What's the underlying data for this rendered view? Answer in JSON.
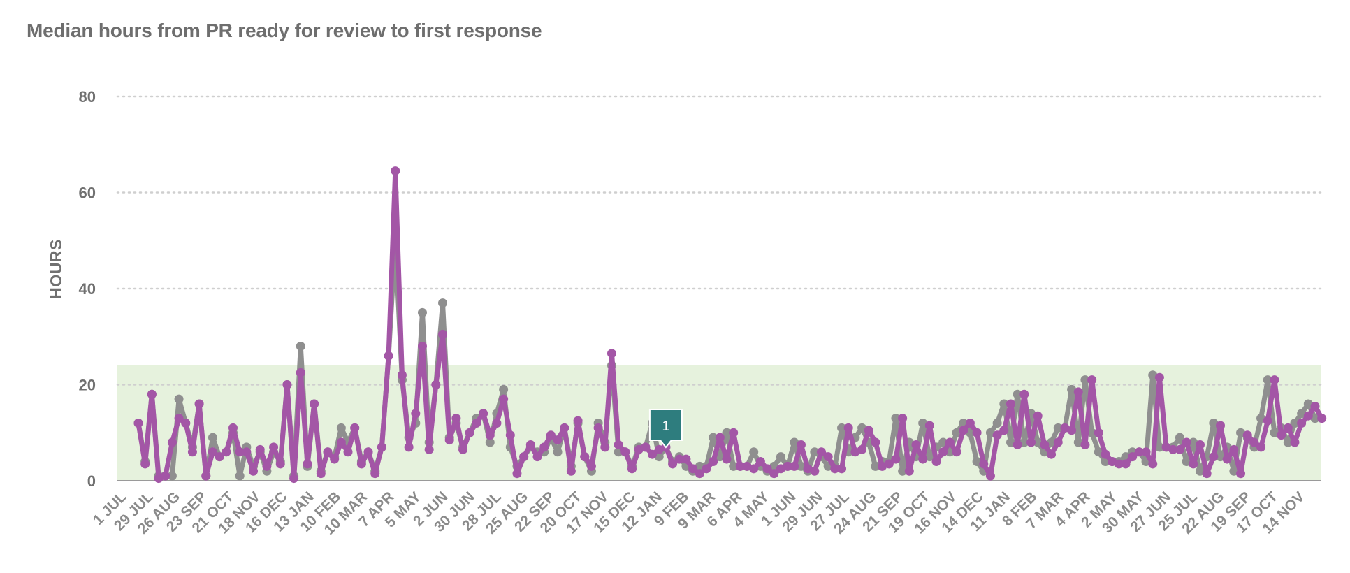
{
  "title": "Median hours from PR ready for review to first response",
  "chart_data": {
    "type": "line",
    "title": "Median hours from PR ready for review to first response",
    "ylabel": "HOURS",
    "xlabel": "",
    "ylim": [
      0,
      80
    ],
    "y_ticks": [
      "80",
      "60",
      "40",
      "20",
      "0"
    ],
    "grid": true,
    "target_band": [
      0,
      24
    ],
    "x_tick_labels": [
      "1 JUL",
      "29 JUL",
      "26 AUG",
      "23 SEP",
      "21 OCT",
      "18 NOV",
      "16 DEC",
      "13 JAN",
      "10 FEB",
      "10 MAR",
      "7 APR",
      "5 MAY",
      "2 JUN",
      "30 JUN",
      "28 JUL",
      "25 AUG",
      "22 SEP",
      "20 OCT",
      "17 NOV",
      "15 DEC",
      "12 JAN",
      "9 FEB",
      "9 MAR",
      "6 APR",
      "4 MAY",
      "1 JUN",
      "29 JUN",
      "27 JUL",
      "24 AUG",
      "21 SEP",
      "19 OCT",
      "16 NOV",
      "14 DEC",
      "11 JAN",
      "8 FEB",
      "7 MAR",
      "4 APR",
      "2 MAY",
      "30 MAY",
      "27 JUN",
      "25 JUL",
      "22 AUG",
      "19 SEP",
      "17 OCT",
      "14 NOV"
    ],
    "series": [
      {
        "color": "#8f8f8f",
        "values": [
          12,
          4,
          18,
          1,
          1,
          1,
          17,
          12,
          7,
          16,
          1,
          9,
          5,
          6,
          10,
          1,
          7,
          3,
          6,
          2,
          6,
          4,
          20,
          1,
          28,
          3,
          16,
          2,
          6,
          5,
          11,
          8,
          11,
          4,
          6,
          2,
          7,
          26,
          50,
          21,
          9,
          12,
          35,
          8,
          20,
          37,
          9,
          12,
          7,
          10,
          13,
          14,
          8,
          14,
          19,
          7,
          3,
          5,
          7,
          6,
          6,
          9,
          6,
          11,
          3,
          12,
          5,
          2,
          12,
          8,
          24,
          6,
          6,
          3,
          7,
          7,
          12,
          5,
          7,
          4,
          5,
          3,
          2,
          3,
          3,
          9,
          5,
          10,
          3,
          3,
          3,
          6,
          3,
          2,
          3,
          5,
          3,
          8,
          3,
          2,
          6,
          5,
          3,
          3,
          11,
          6,
          9,
          11,
          8,
          3,
          4,
          4,
          13,
          2,
          8,
          5,
          12,
          5,
          7,
          8,
          6,
          10,
          12,
          10,
          4,
          2,
          10,
          12,
          16,
          8,
          18,
          8,
          14,
          8,
          6,
          8,
          11,
          11,
          19,
          8,
          21,
          10,
          6,
          4,
          4,
          4,
          5,
          6,
          6,
          4,
          22,
          7,
          7,
          7,
          9,
          4,
          8,
          2,
          5,
          12,
          5,
          7,
          2,
          10,
          9,
          7,
          13,
          21,
          10,
          11,
          8,
          12,
          14,
          16,
          13
        ]
      },
      {
        "color": "#a356a6",
        "values": [
          12,
          3.5,
          18,
          0.5,
          1,
          8,
          13,
          12,
          6,
          16,
          1,
          6,
          5,
          6,
          11,
          6,
          6,
          2,
          6.5,
          3,
          7,
          3.5,
          20,
          0.5,
          22.5,
          3.5,
          16,
          1.5,
          6,
          4.5,
          8,
          6,
          11,
          3.5,
          6,
          1.5,
          7,
          26,
          64.5,
          22,
          7,
          14,
          28,
          6.5,
          20,
          30.5,
          8.5,
          13,
          6.5,
          10,
          12,
          14,
          9.5,
          12,
          17,
          9.5,
          1.5,
          5,
          7.5,
          5,
          7,
          9.5,
          8.5,
          11,
          2,
          12.5,
          5,
          3,
          11,
          7,
          26.5,
          7.5,
          6,
          2.5,
          6.5,
          7,
          5.5,
          6.5,
          7,
          3.5,
          4.5,
          4.5,
          2.5,
          1.5,
          2.5,
          4,
          9,
          4.5,
          10,
          3,
          3,
          2.5,
          4,
          2.5,
          1.5,
          2.5,
          3,
          3,
          7.5,
          2.5,
          2,
          6,
          5,
          2.5,
          2.5,
          11,
          6,
          6.5,
          10.5,
          8,
          3,
          3.5,
          4.5,
          13,
          2,
          7.5,
          4.5,
          11.5,
          4,
          6,
          8,
          6,
          10.5,
          12,
          10,
          3.5,
          1,
          9.5,
          10.5,
          16,
          7.5,
          18,
          8,
          13.5,
          7.5,
          5.5,
          8,
          11,
          10.5,
          18.5,
          7.5,
          21,
          10,
          5.5,
          4,
          3.5,
          3.5,
          5,
          6,
          6,
          3.5,
          21.5,
          7,
          6.5,
          6.5,
          8,
          3.5,
          7.5,
          1.5,
          5,
          11.5,
          4.5,
          6.5,
          1.5,
          9.5,
          8,
          7,
          12.5,
          21,
          9.5,
          11,
          8,
          12,
          13.5,
          15.5,
          13
        ]
      }
    ],
    "annotation": {
      "label": "1",
      "x_index": 78,
      "color": "#2e7d7e"
    }
  }
}
